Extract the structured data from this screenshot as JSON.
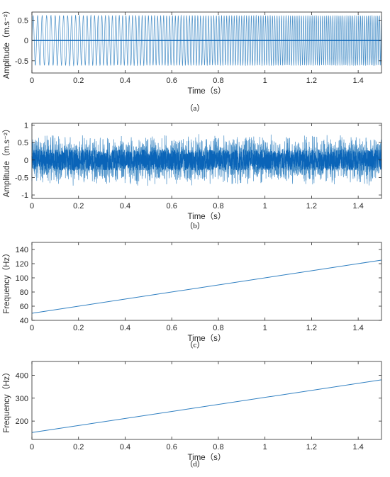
{
  "chart_data": [
    {
      "type": "line",
      "subplot_label": "（a）",
      "xlabel": "Time（s）",
      "ylabel": "Amplitude（m.s⁻²）",
      "xlim": [
        0,
        1.5
      ],
      "ylim": [
        -0.8,
        0.7
      ],
      "xticks": [
        "0",
        "0.2",
        "0.4",
        "0.6",
        "0.8",
        "1",
        "1.2",
        "1.4"
      ],
      "yticks": [
        "0.5",
        "0",
        "-0.5"
      ],
      "series": [
        {
          "kind": "chirp_oscillation",
          "amplitude": 0.62,
          "freq_start_hz": 50,
          "freq_end_hz": 125,
          "x_range": [
            0,
            1.5
          ],
          "color": "#4a90c8"
        }
      ]
    },
    {
      "type": "line",
      "subplot_label": "（b）",
      "xlabel": "Time（s）",
      "ylabel": "Amplitude（m.s⁻²）",
      "xlim": [
        0,
        1.5
      ],
      "ylim": [
        -1.1,
        1.05
      ],
      "xticks": [
        "0",
        "0.2",
        "0.4",
        "0.6",
        "0.8",
        "1",
        "1.2",
        "1.4"
      ],
      "yticks": [
        "1",
        "0.5",
        "0",
        "-0.5",
        "-1"
      ],
      "series": [
        {
          "kind": "noisy_chirp_oscillation",
          "amplitude_outer": 0.75,
          "amplitude_inner": 0.3,
          "freq_start_hz": 150,
          "freq_end_hz": 380,
          "x_range": [
            0,
            1.5
          ],
          "color": "#4a90c8",
          "core_color": "#0a64b8"
        }
      ]
    },
    {
      "type": "line",
      "subplot_label": "（c）",
      "xlabel": "Time（s）",
      "ylabel": "Frequency（Hz）",
      "xlim": [
        0,
        1.5
      ],
      "ylim": [
        40,
        150
      ],
      "xticks": [
        "0",
        "0.2",
        "0.4",
        "0.6",
        "0.8",
        "1",
        "1.2",
        "1.4"
      ],
      "yticks": [
        "140",
        "120",
        "100",
        "80",
        "60",
        "40"
      ],
      "series": [
        {
          "x": [
            0,
            1.5
          ],
          "y": [
            50,
            125
          ],
          "color": "#2f7fc1"
        }
      ]
    },
    {
      "type": "line",
      "subplot_label": "（d）",
      "xlabel": "Time（s）",
      "ylabel": "Frequency（Hz）",
      "xlim": [
        0,
        1.5
      ],
      "ylim": [
        120,
        460
      ],
      "xticks": [
        "0",
        "0.2",
        "0.4",
        "0.6",
        "0.8",
        "1",
        "1.2",
        "1.4"
      ],
      "yticks": [
        "400",
        "300",
        "200"
      ],
      "series": [
        {
          "x": [
            0,
            1.5
          ],
          "y": [
            150,
            380
          ],
          "color": "#2f7fc1"
        }
      ]
    }
  ]
}
